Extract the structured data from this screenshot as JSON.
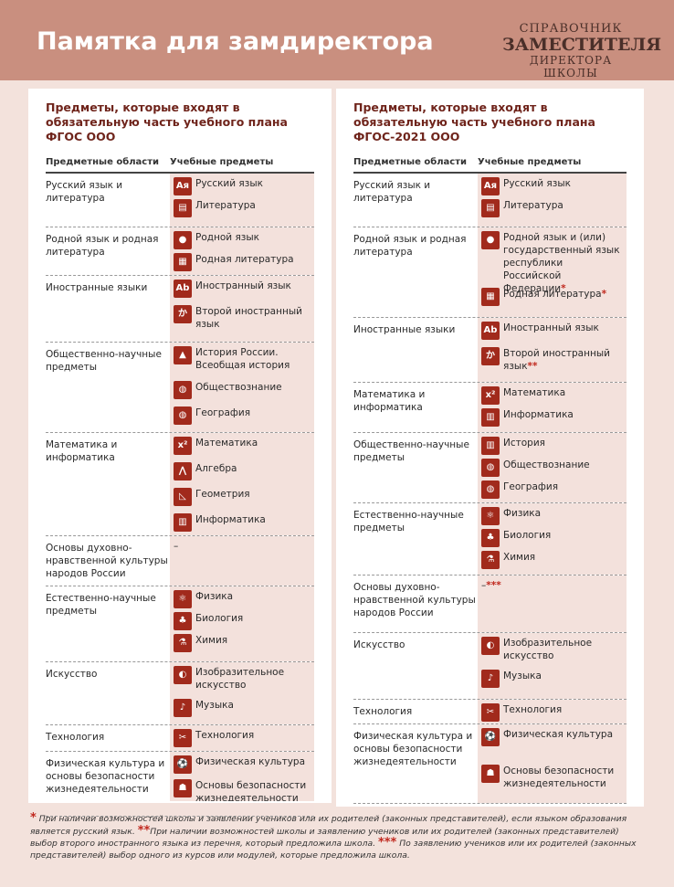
{
  "header": {
    "title": "Памятка для замдиректора",
    "brand": [
      "СПРАВОЧНИК",
      "ЗАМЕСТИТЕЛЯ",
      "ДИРЕКТОРА ШКОЛЫ"
    ]
  },
  "columns": {
    "area": "Предметные области",
    "subjects": "Учебные предметы"
  },
  "left": {
    "title": "Предметы, которые входят в обязательную часть учебного плана ФГОС ООО",
    "rows": [
      {
        "area": "Русский язык и литература",
        "h": 58,
        "subjects": [
          {
            "icon": "Ая",
            "label": "Русский язык",
            "h": 24
          },
          {
            "icon": "▤",
            "label": "Литература",
            "h": 24
          }
        ]
      },
      {
        "area": "Родной язык и родная литература",
        "h": 52,
        "subjects": [
          {
            "icon": "●",
            "label": "Родной язык",
            "h": 24
          },
          {
            "icon": "▦",
            "label": "Родная литература",
            "h": 24
          }
        ]
      },
      {
        "area": "Иностранные языки",
        "h": 72,
        "subjects": [
          {
            "icon": "Ab",
            "label": "Иностранный язык",
            "h": 28
          },
          {
            "icon": "か",
            "label": "Второй иностранный язык",
            "h": 36
          }
        ]
      },
      {
        "area": "Общественно-научные предметы",
        "h": 98,
        "subjects": [
          {
            "icon": "▲",
            "label": "История России. Всеобщая история",
            "h": 38
          },
          {
            "icon": "◍",
            "label": "Обществознание",
            "h": 28
          },
          {
            "icon": "◍",
            "label": "География",
            "h": 26
          }
        ]
      },
      {
        "area": "Математика и информатика",
        "h": 112,
        "subjects": [
          {
            "icon": "x²",
            "label": "Математика",
            "h": 28
          },
          {
            "icon": "⋀",
            "label": "Алгебра",
            "h": 28
          },
          {
            "icon": "◺",
            "label": "Геометрия",
            "h": 28
          },
          {
            "icon": "▥",
            "label": "Информатика",
            "h": 24
          }
        ]
      },
      {
        "area": "Основы духовно-нравственной культуры народов России",
        "h": 54,
        "subjects": [
          {
            "icon": "",
            "label": "–",
            "h": 24
          }
        ]
      },
      {
        "area": "Естественно-научные предметы",
        "h": 82,
        "subjects": [
          {
            "icon": "⚛",
            "label": "Физика",
            "h": 24
          },
          {
            "icon": "♣",
            "label": "Биология",
            "h": 24
          },
          {
            "icon": "⚗",
            "label": "Химия",
            "h": 24
          }
        ]
      },
      {
        "area": "Искусство",
        "h": 68,
        "subjects": [
          {
            "icon": "◐",
            "label": "Изобразительное искусство",
            "h": 36
          },
          {
            "icon": "♪",
            "label": "Музыка",
            "h": 24
          }
        ]
      },
      {
        "area": "Технология",
        "h": 28,
        "subjects": [
          {
            "icon": "✂",
            "label": "Технология",
            "h": 24
          }
        ]
      },
      {
        "area": "Физическая культура и основы безопасности жизнедеятельности",
        "h": 70,
        "subjects": [
          {
            "icon": "⚽",
            "label": "Физическая  культура",
            "h": 26
          },
          {
            "icon": "☗",
            "label": "Основы безопасности жизнедеятельности",
            "h": 36
          }
        ]
      }
    ]
  },
  "right": {
    "title": "Предметы, которые входят в обязательную часть учебного плана ФГОС-2021 ООО",
    "rows": [
      {
        "area": "Русский язык и литература",
        "h": 58,
        "subjects": [
          {
            "icon": "Ая",
            "label": "Русский язык",
            "h": 24
          },
          {
            "icon": "▤",
            "label": "Литература",
            "h": 24
          }
        ]
      },
      {
        "area": "Родной язык и родная литература",
        "h": 98,
        "subjects": [
          {
            "icon": "●",
            "label": "Родной язык и (или) государственный язык республики Российской Федерации",
            "star": "*",
            "h": 62
          },
          {
            "icon": "▦",
            "label": "Родная литература",
            "star": "*",
            "h": 26
          }
        ]
      },
      {
        "area": "Иностранные языки",
        "h": 70,
        "subjects": [
          {
            "icon": "Ab",
            "label": "Иностранный язык",
            "h": 28
          },
          {
            "icon": "か",
            "label": "Второй иностранный язык",
            "star": "**",
            "h": 34
          }
        ]
      },
      {
        "area": "Математика и информатика",
        "h": 54,
        "subjects": [
          {
            "icon": "x²",
            "label": "Математика",
            "h": 24
          },
          {
            "icon": "▥",
            "label": "Информатика",
            "h": 24
          }
        ]
      },
      {
        "area": "Общественно-научные предметы",
        "h": 76,
        "subjects": [
          {
            "icon": "▥",
            "label": "История",
            "h": 24
          },
          {
            "icon": "◍",
            "label": "Обществознание",
            "h": 24
          },
          {
            "icon": "◍",
            "label": "География",
            "h": 24
          }
        ]
      },
      {
        "area": "Естественно-научные предметы",
        "h": 78,
        "subjects": [
          {
            "icon": "⚛",
            "label": "Физика",
            "h": 24
          },
          {
            "icon": "♣",
            "label": "Биология",
            "h": 24
          },
          {
            "icon": "⚗",
            "label": "Химия",
            "h": 24
          }
        ]
      },
      {
        "area": "Основы духовно-нравственной культуры народов России",
        "h": 62,
        "subjects": [
          {
            "icon": "",
            "label": "–",
            "star": "***",
            "h": 24
          }
        ]
      },
      {
        "area": "Искусство",
        "h": 72,
        "subjects": [
          {
            "icon": "◐",
            "label": "Изобразительное искусство",
            "h": 36
          },
          {
            "icon": "♪",
            "label": "Музыка",
            "h": 26
          }
        ]
      },
      {
        "area": "Технология",
        "h": 26,
        "subjects": [
          {
            "icon": "✂",
            "label": "Технология",
            "h": 22
          }
        ]
      },
      {
        "area": "Физическая культура и основы безопасности жизнедеятельности",
        "h": 86,
        "subjects": [
          {
            "icon": "⚽",
            "label": "Физическая культура",
            "h": 40
          },
          {
            "icon": "☗",
            "label": "Основы безопасности жизнедеятельности",
            "h": 36
          }
        ]
      }
    ]
  },
  "footnotes": [
    {
      "star": "*",
      "text": " При наличии возможностей школы и заявлении учеников или их родителей (законных представителей), если языком образования является русский язык. "
    },
    {
      "star": "**",
      "text": "При наличии возможностей школы и заявлению учеников или их родителей (законных представителей) выбор второго иностранного языка из перечня, который предложила школа. "
    },
    {
      "star": "***",
      "text": " По заявлению учеников или их родителей (законных представителей) выбор одного из курсов или модулей, которые предложила школа."
    }
  ]
}
